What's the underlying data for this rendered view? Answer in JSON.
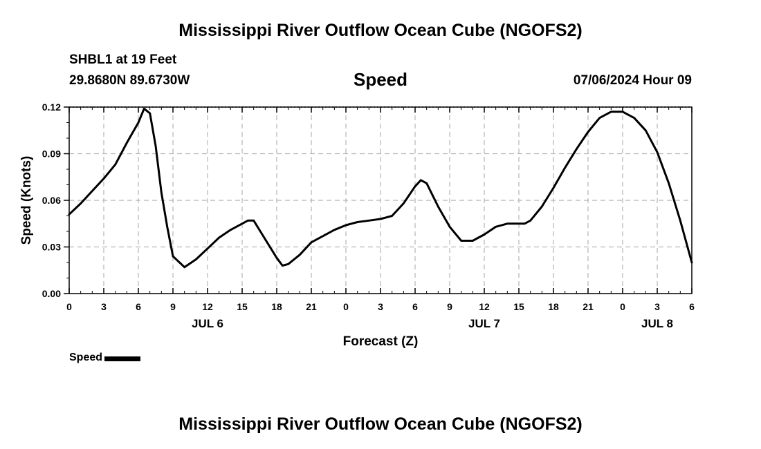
{
  "header": {
    "title": "Mississippi River Outflow Ocean Cube (NGOFS2)",
    "station": "SHBL1 at 19 Feet",
    "coordinates": "29.8680N  89.6730W",
    "variable": "Speed",
    "datetime": "07/06/2024 Hour 09"
  },
  "footer": {
    "title": "Mississippi River Outflow Ocean Cube (NGOFS2)"
  },
  "legend": {
    "label": "Speed",
    "color": "#000000"
  },
  "chart_data": {
    "type": "line",
    "title": "Speed",
    "xlabel": "Forecast (Z)",
    "ylabel": "Speed (Knots)",
    "xlim": [
      0,
      54
    ],
    "ylim": [
      0,
      0.12
    ],
    "grid": true,
    "legend_position": "bottom-left",
    "x_ticks": [
      0,
      3,
      6,
      9,
      12,
      15,
      18,
      21,
      24,
      27,
      30,
      33,
      36,
      39,
      42,
      45,
      48,
      51,
      54
    ],
    "x_tick_labels": [
      "0",
      "3",
      "6",
      "9",
      "12",
      "15",
      "18",
      "21",
      "0",
      "3",
      "6",
      "9",
      "12",
      "15",
      "18",
      "21",
      "0",
      "3",
      "6"
    ],
    "y_ticks": [
      0,
      0.03,
      0.06,
      0.09,
      0.12
    ],
    "y_tick_labels": [
      "0.00",
      "0.03",
      "0.06",
      "0.09",
      "0.12"
    ],
    "date_labels": [
      {
        "x": 12,
        "label": "JUL 6"
      },
      {
        "x": 36,
        "label": "JUL 7"
      },
      {
        "x": 51,
        "label": "JUL 8"
      }
    ],
    "series": [
      {
        "name": "Speed",
        "color": "#000000",
        "x": [
          0,
          1,
          2,
          3,
          4,
          5,
          6,
          6.5,
          7,
          7.5,
          8,
          8.5,
          9,
          10,
          11,
          12,
          13,
          14,
          15,
          15.5,
          16,
          17,
          18,
          18.5,
          19,
          20,
          21,
          22,
          23,
          24,
          25,
          26,
          27,
          27.5,
          28,
          29,
          30,
          30.5,
          31,
          32,
          33,
          34,
          35,
          36,
          37,
          38,
          39,
          39.5,
          40,
          41,
          42,
          43,
          44,
          45,
          46,
          47,
          48,
          49,
          50,
          51,
          52,
          53,
          54
        ],
        "values": [
          0.051,
          0.058,
          0.066,
          0.074,
          0.083,
          0.097,
          0.11,
          0.119,
          0.116,
          0.095,
          0.065,
          0.043,
          0.024,
          0.017,
          0.022,
          0.029,
          0.036,
          0.041,
          0.045,
          0.047,
          0.047,
          0.035,
          0.023,
          0.018,
          0.019,
          0.025,
          0.033,
          0.037,
          0.041,
          0.044,
          0.046,
          0.047,
          0.048,
          0.049,
          0.05,
          0.058,
          0.069,
          0.073,
          0.071,
          0.056,
          0.043,
          0.034,
          0.034,
          0.038,
          0.043,
          0.045,
          0.045,
          0.045,
          0.047,
          0.056,
          0.068,
          0.081,
          0.093,
          0.104,
          0.113,
          0.117,
          0.117,
          0.113,
          0.105,
          0.091,
          0.071,
          0.047,
          0.02
        ]
      }
    ]
  }
}
